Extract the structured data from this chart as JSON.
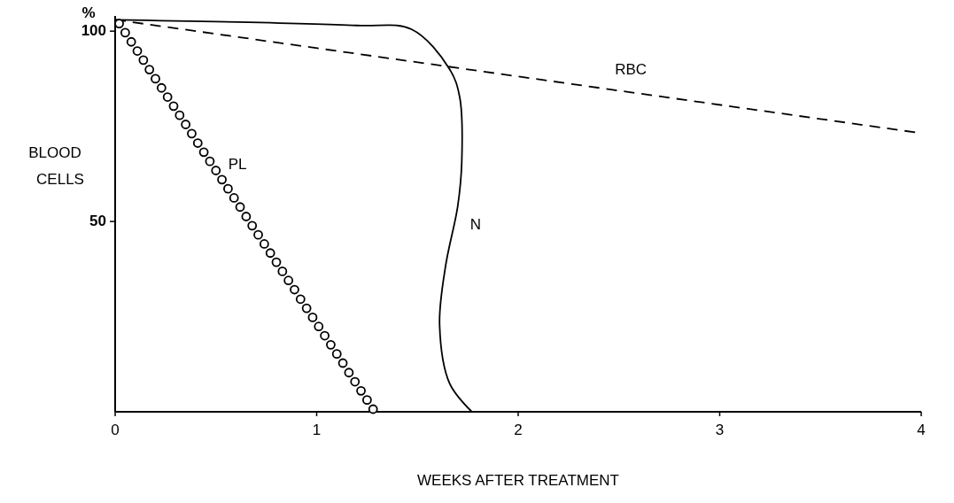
{
  "chart_data": {
    "type": "line",
    "xlabel": "WEEKS AFTER TREATMENT",
    "ylabel": "BLOOD CELLS",
    "annotations": [
      "%"
    ],
    "xlim": [
      0,
      4
    ],
    "ylim": [
      0,
      104
    ],
    "xticks": [
      0,
      1,
      2,
      3,
      4
    ],
    "yticks": [
      50,
      100
    ],
    "grid": false,
    "series": [
      {
        "name": "PL",
        "type": "scatter",
        "marker": "circle",
        "color": "#000000",
        "x": [
          0.02,
          0.05,
          0.08,
          0.11,
          0.14,
          0.17,
          0.2,
          0.23,
          0.26,
          0.29,
          0.32,
          0.35,
          0.38,
          0.41,
          0.44,
          0.47,
          0.5,
          0.53,
          0.56,
          0.59,
          0.62,
          0.65,
          0.68,
          0.71,
          0.74,
          0.77,
          0.8,
          0.83,
          0.86,
          0.89,
          0.92,
          0.95,
          0.98,
          1.01,
          1.04,
          1.07,
          1.1,
          1.13,
          1.16,
          1.19,
          1.22,
          1.25,
          1.28
        ],
        "values": [
          102,
          99.6,
          97.2,
          94.8,
          92.4,
          89.9,
          87.5,
          85.1,
          82.7,
          80.3,
          77.9,
          75.5,
          73.1,
          70.6,
          68.2,
          65.8,
          63.4,
          61,
          58.6,
          56.2,
          53.8,
          51.3,
          48.9,
          46.5,
          44.1,
          41.7,
          39.3,
          36.9,
          34.5,
          32.1,
          29.6,
          27.2,
          24.8,
          22.4,
          20,
          17.6,
          15.2,
          12.8,
          10.3,
          7.9,
          5.5,
          3.1,
          0.7
        ]
      },
      {
        "name": "N",
        "line_style": "solid",
        "color": "#000000",
        "x": [
          0,
          1.2,
          1.47,
          1.66,
          1.71,
          1.72,
          1.7,
          1.64,
          1.61,
          1.66,
          1.77
        ],
        "values": [
          103,
          101.5,
          100.5,
          90,
          82.6,
          65.6,
          54,
          38.4,
          22.8,
          7.4,
          0
        ]
      },
      {
        "name": "RBC",
        "line_style": "dashed",
        "color": "#000000",
        "x": [
          0,
          4
        ],
        "values": [
          103,
          73.2
        ]
      }
    ]
  }
}
